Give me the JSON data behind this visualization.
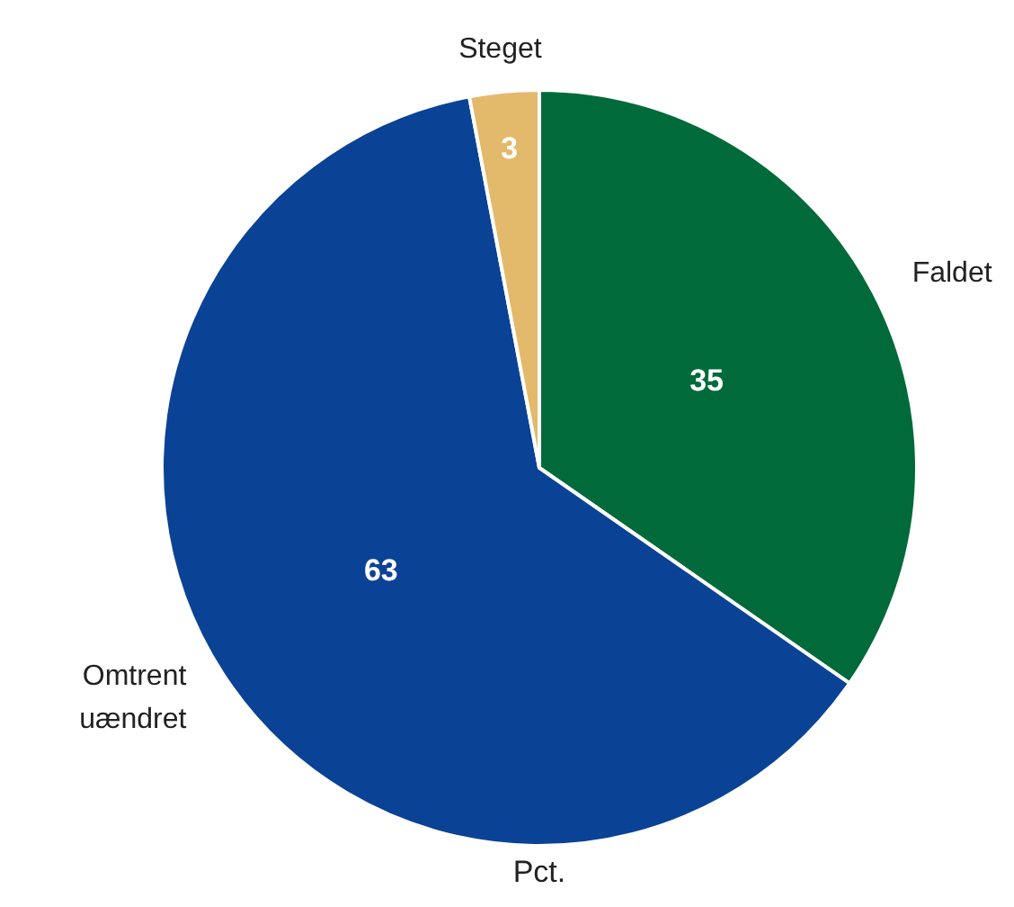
{
  "chart_data": {
    "type": "pie",
    "categories": [
      "Faldet",
      "Omtrent uændret",
      "Steget"
    ],
    "values": [
      35,
      63,
      3
    ],
    "colors": [
      "#006a3b",
      "#0a4295",
      "#e3b96c"
    ],
    "data_labels": true,
    "annotations": [
      "Pct."
    ]
  }
}
